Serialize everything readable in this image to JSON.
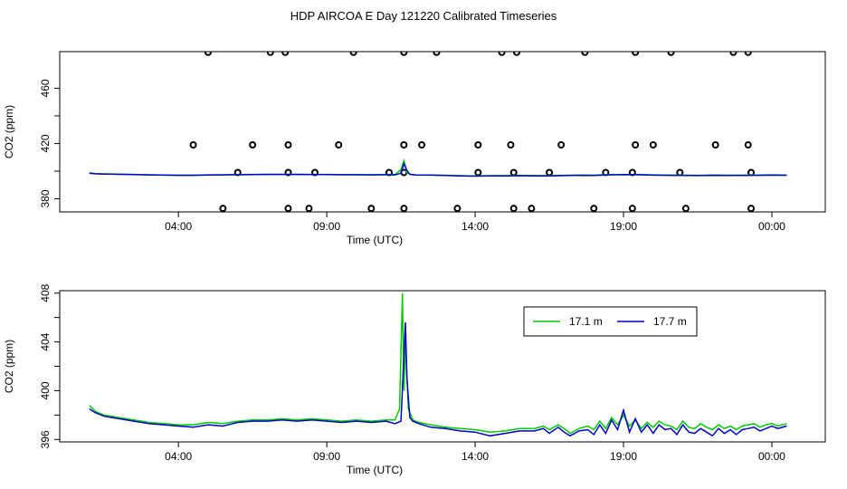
{
  "title": "HDP AIRCOA E  Day 121220  Calibrated Timeseries",
  "chart_data": [
    {
      "type": "scatter",
      "ylabel": "CO2 (ppm)",
      "xlabel": "Time (UTC)",
      "x_unit": "hours since 00:00 UTC",
      "xlim": [
        -1.0,
        24.8
      ],
      "ylim": [
        370.5,
        486.5
      ],
      "x_ticks": [
        3,
        8,
        13,
        18,
        23
      ],
      "x_tick_labels": [
        "04:00",
        "09:00",
        "14:00",
        "19:00",
        "00:00"
      ],
      "y_ticks": [
        380,
        400,
        420,
        440,
        460
      ],
      "y_tick_labels": [
        "380",
        "",
        "420",
        "",
        "460"
      ],
      "grid": false,
      "series": [
        {
          "marker": "open-circle",
          "color": "#000000",
          "points": [
            [
              4.0,
              486
            ],
            [
              6.1,
              486
            ],
            [
              6.6,
              486
            ],
            [
              8.9,
              486
            ],
            [
              10.6,
              486
            ],
            [
              11.7,
              486
            ],
            [
              13.9,
              486
            ],
            [
              14.4,
              486
            ],
            [
              16.7,
              486
            ],
            [
              18.4,
              486
            ],
            [
              19.6,
              486
            ],
            [
              21.7,
              486
            ],
            [
              22.2,
              486
            ],
            [
              3.5,
              419
            ],
            [
              5.5,
              419
            ],
            [
              6.7,
              419
            ],
            [
              8.4,
              419
            ],
            [
              10.6,
              419
            ],
            [
              11.2,
              419
            ],
            [
              13.1,
              419
            ],
            [
              14.2,
              419
            ],
            [
              15.9,
              419
            ],
            [
              18.4,
              419
            ],
            [
              19.0,
              419
            ],
            [
              21.1,
              419
            ],
            [
              22.2,
              419
            ],
            [
              5.0,
              399
            ],
            [
              6.7,
              399
            ],
            [
              7.6,
              399
            ],
            [
              10.1,
              399
            ],
            [
              10.6,
              399
            ],
            [
              13.1,
              399
            ],
            [
              14.3,
              399
            ],
            [
              15.5,
              399
            ],
            [
              17.4,
              399
            ],
            [
              18.3,
              399
            ],
            [
              19.9,
              399
            ],
            [
              22.3,
              399
            ],
            [
              4.5,
              373
            ],
            [
              6.7,
              373
            ],
            [
              7.4,
              373
            ],
            [
              9.5,
              373
            ],
            [
              10.6,
              373
            ],
            [
              12.4,
              373
            ],
            [
              14.3,
              373
            ],
            [
              14.9,
              373
            ],
            [
              17.0,
              373
            ],
            [
              18.3,
              373
            ],
            [
              20.1,
              373
            ],
            [
              22.3,
              373
            ]
          ]
        },
        {
          "name": "17.1 m",
          "color": "#00cc00",
          "x": [
            0.0,
            0.2,
            0.5,
            1.0,
            1.5,
            2.0,
            2.5,
            3.0,
            3.5,
            4.0,
            4.5,
            5.0,
            5.5,
            6.0,
            6.5,
            7.0,
            7.5,
            8.0,
            8.5,
            9.0,
            9.5,
            10.0,
            10.3,
            10.5,
            10.6,
            10.7,
            10.8,
            11.0,
            11.5,
            12.0,
            12.5,
            13.0,
            13.5,
            14.0,
            14.5,
            15.0,
            15.5,
            16.0,
            16.5,
            17.0,
            17.5,
            18.0,
            18.5,
            19.0,
            19.5,
            20.0,
            20.5,
            21.0,
            21.5,
            22.0,
            22.5,
            23.0,
            23.5
          ],
          "y": [
            398.8,
            398.2,
            398.0,
            397.8,
            397.6,
            397.4,
            397.2,
            397.1,
            397.1,
            397.3,
            397.4,
            397.5,
            397.6,
            397.7,
            397.7,
            397.7,
            397.6,
            397.6,
            397.5,
            397.5,
            397.4,
            397.6,
            397.5,
            401.0,
            407.6,
            399.0,
            397.8,
            397.3,
            397.2,
            397.0,
            396.7,
            396.6,
            396.7,
            396.8,
            396.9,
            396.8,
            396.8,
            397.0,
            397.2,
            397.1,
            397.5,
            397.4,
            397.6,
            397.3,
            397.2,
            397.1,
            397.0,
            397.2,
            397.1,
            397.1,
            397.2,
            397.3,
            397.2
          ]
        },
        {
          "name": "17.7 m",
          "color": "#0000cc",
          "x": [
            0.0,
            0.2,
            0.5,
            1.0,
            1.5,
            2.0,
            2.5,
            3.0,
            3.5,
            4.0,
            4.5,
            5.0,
            5.5,
            6.0,
            6.5,
            7.0,
            7.5,
            8.0,
            8.5,
            9.0,
            9.5,
            10.0,
            10.3,
            10.5,
            10.6,
            10.7,
            10.8,
            11.0,
            11.5,
            12.0,
            12.5,
            13.0,
            13.5,
            14.0,
            14.5,
            15.0,
            15.5,
            16.0,
            16.5,
            17.0,
            17.5,
            18.0,
            18.5,
            19.0,
            19.5,
            20.0,
            20.5,
            21.0,
            21.5,
            22.0,
            22.5,
            23.0,
            23.5
          ],
          "y": [
            398.4,
            398.1,
            397.9,
            397.7,
            397.5,
            397.3,
            397.1,
            397.0,
            397.0,
            397.2,
            397.3,
            397.4,
            397.5,
            397.6,
            397.6,
            397.6,
            397.5,
            397.5,
            397.4,
            397.4,
            397.3,
            397.4,
            397.3,
            398.5,
            405.5,
            400.5,
            397.6,
            397.2,
            397.1,
            396.9,
            396.6,
            396.4,
            396.5,
            396.6,
            396.7,
            396.6,
            396.6,
            396.8,
            397.0,
            396.9,
            397.3,
            397.5,
            397.4,
            397.1,
            397.0,
            396.9,
            396.8,
            397.0,
            396.9,
            396.9,
            397.0,
            397.1,
            397.0
          ]
        }
      ]
    },
    {
      "type": "line",
      "ylabel": "CO2 (ppm)",
      "xlabel": "Time (UTC)",
      "x_unit": "hours since 00:00 UTC",
      "xlim": [
        -1.0,
        24.8
      ],
      "ylim": [
        395.8,
        408.2
      ],
      "x_ticks": [
        3,
        8,
        13,
        18,
        23
      ],
      "x_tick_labels": [
        "04:00",
        "09:00",
        "14:00",
        "19:00",
        "00:00"
      ],
      "y_ticks": [
        396,
        398,
        400,
        402,
        404,
        406,
        408
      ],
      "y_tick_labels": [
        "396",
        "",
        "400",
        "",
        "404",
        "",
        "408"
      ],
      "grid": false,
      "legend": {
        "position": "top-right",
        "entries": [
          "17.1 m",
          "17.7 m"
        ]
      },
      "series": [
        {
          "name": "17.1 m",
          "color": "#00cc00",
          "x": [
            0.0,
            0.2,
            0.5,
            1.0,
            1.5,
            2.0,
            2.5,
            3.0,
            3.5,
            4.0,
            4.5,
            5.0,
            5.5,
            6.0,
            6.5,
            7.0,
            7.5,
            8.0,
            8.5,
            9.0,
            9.5,
            10.0,
            10.3,
            10.45,
            10.55,
            10.6,
            10.65,
            10.75,
            10.9,
            11.1,
            11.5,
            12.0,
            12.5,
            13.0,
            13.5,
            14.0,
            14.5,
            15.0,
            15.3,
            15.5,
            15.8,
            16.0,
            16.2,
            16.5,
            16.8,
            17.0,
            17.2,
            17.4,
            17.6,
            17.8,
            18.0,
            18.2,
            18.4,
            18.6,
            18.8,
            19.0,
            19.2,
            19.4,
            19.6,
            19.8,
            20.0,
            20.2,
            20.4,
            20.6,
            20.8,
            21.0,
            21.2,
            21.4,
            21.6,
            21.8,
            22.0,
            22.2,
            22.4,
            22.6,
            22.8,
            23.0,
            23.2,
            23.5
          ],
          "y": [
            398.8,
            398.3,
            398.0,
            397.8,
            397.6,
            397.4,
            397.3,
            397.2,
            397.2,
            397.4,
            397.3,
            397.5,
            397.6,
            397.6,
            397.7,
            397.6,
            397.7,
            397.6,
            397.5,
            397.6,
            397.5,
            397.6,
            397.6,
            398.5,
            408.0,
            400.0,
            404.0,
            398.5,
            397.6,
            397.4,
            397.2,
            397.0,
            396.9,
            396.8,
            396.6,
            396.7,
            396.9,
            396.9,
            397.1,
            396.8,
            397.2,
            396.9,
            396.5,
            396.9,
            397.1,
            396.8,
            397.5,
            396.9,
            397.8,
            397.2,
            398.0,
            397.1,
            397.6,
            396.9,
            397.4,
            397.0,
            397.5,
            397.2,
            397.1,
            396.8,
            397.5,
            397.0,
            396.9,
            397.3,
            397.0,
            396.8,
            397.2,
            396.9,
            397.1,
            396.8,
            397.1,
            397.2,
            397.3,
            397.0,
            397.2,
            397.3,
            397.1,
            397.3
          ]
        },
        {
          "name": "17.7 m",
          "color": "#0000cc",
          "x": [
            0.0,
            0.2,
            0.5,
            1.0,
            1.5,
            2.0,
            2.5,
            3.0,
            3.5,
            4.0,
            4.5,
            5.0,
            5.5,
            6.0,
            6.5,
            7.0,
            7.5,
            8.0,
            8.5,
            9.0,
            9.5,
            10.0,
            10.3,
            10.5,
            10.6,
            10.65,
            10.7,
            10.8,
            10.9,
            11.1,
            11.5,
            12.0,
            12.5,
            13.0,
            13.5,
            14.0,
            14.5,
            15.0,
            15.3,
            15.5,
            15.8,
            16.0,
            16.2,
            16.5,
            16.8,
            17.0,
            17.2,
            17.4,
            17.6,
            17.8,
            18.0,
            18.2,
            18.4,
            18.6,
            18.8,
            19.0,
            19.2,
            19.4,
            19.6,
            19.8,
            20.0,
            20.2,
            20.4,
            20.6,
            20.8,
            21.0,
            21.2,
            21.4,
            21.6,
            21.8,
            22.0,
            22.2,
            22.4,
            22.6,
            22.8,
            23.0,
            23.2,
            23.5
          ],
          "y": [
            398.5,
            398.2,
            397.9,
            397.7,
            397.5,
            397.3,
            397.2,
            397.1,
            397.0,
            397.2,
            397.1,
            397.4,
            397.5,
            397.5,
            397.6,
            397.5,
            397.6,
            397.5,
            397.4,
            397.5,
            397.4,
            397.5,
            397.3,
            397.5,
            403.0,
            405.6,
            401.0,
            397.8,
            397.5,
            397.3,
            397.0,
            396.9,
            396.7,
            396.6,
            396.3,
            396.5,
            396.7,
            396.7,
            396.9,
            396.5,
            397.0,
            396.6,
            396.3,
            396.7,
            396.8,
            396.4,
            397.2,
            396.5,
            397.6,
            396.8,
            398.4,
            396.6,
            397.7,
            396.6,
            397.2,
            396.5,
            397.2,
            396.8,
            396.9,
            396.4,
            397.2,
            396.6,
            396.5,
            396.9,
            396.6,
            396.3,
            396.9,
            396.5,
            396.8,
            396.4,
            396.8,
            396.9,
            397.0,
            396.7,
            396.9,
            397.1,
            396.9,
            397.1
          ]
        }
      ]
    }
  ]
}
